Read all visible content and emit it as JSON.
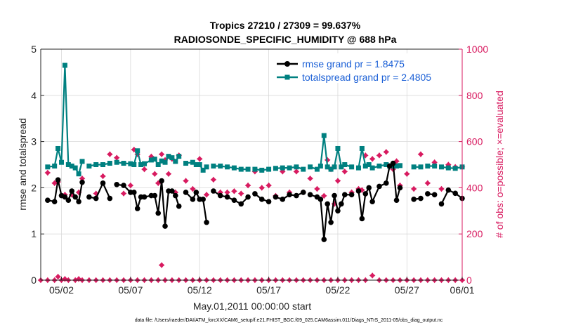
{
  "chart_data": {
    "type": "line",
    "title": "Tropics 27210 / 27309 = 99.637%",
    "subtitle": "RADIOSONDE_SPECIFIC_HUMIDITY @ 688 hPa",
    "xlabel": "May.01,2011 00:00:00 start",
    "ylabel": "rmse and totalspread",
    "ylabel_right": "# of obs: o=possible; ×=evaluated",
    "xlim": [
      0.5,
      31.0
    ],
    "ylim": [
      0,
      5
    ],
    "ylim_right": [
      0,
      1000
    ],
    "x_ticks": [
      2,
      7,
      12,
      17,
      22,
      27,
      32
    ],
    "x_tick_labels": [
      "05/02",
      "05/07",
      "05/12",
      "05/17",
      "05/22",
      "05/27",
      "06/01"
    ],
    "y_ticks": [
      0,
      1,
      2,
      3,
      4,
      5
    ],
    "y_tick_labels": [
      "0",
      "1",
      "2",
      "3",
      "4",
      "5"
    ],
    "y_ticks_right": [
      0,
      200,
      400,
      600,
      800,
      1000
    ],
    "y_tick_labels_right": [
      "0",
      "200",
      "400",
      "600",
      "800",
      "1000"
    ],
    "footer": "data file: /Users/raeder/DAI/ATM_forcXX/CAM6_setup/f.e21.FHIST_BGC.f09_025.CAM6assim.011/Diags_NTrS_2011-05/obs_diag_output.nc",
    "legend_location": "top-right",
    "colors": {
      "rmse": "#000000",
      "totalspread": "#008080",
      "obs": "#d81b60",
      "legend_text": "#1a5fd6"
    },
    "series": [
      {
        "name": "rmse",
        "legend_label": "rmse grand pr = 1.8475",
        "axis": "left",
        "segments": [
          {
            "x": [
              1.0,
              1.5,
              1.75,
              2.0,
              2.25,
              2.5,
              2.75,
              3.0,
              3.25,
              3.5
            ],
            "y": [
              1.73,
              1.7,
              2.17,
              1.83,
              1.8,
              1.73,
              1.93,
              1.8,
              1.7,
              2.12
            ]
          },
          {
            "x": [
              4.0,
              4.5,
              5.0,
              5.5
            ],
            "y": [
              1.8,
              1.77,
              2.1,
              1.77
            ]
          },
          {
            "x": [
              6.0,
              6.5,
              7.0,
              7.25,
              7.5,
              7.75,
              8.0,
              8.5,
              8.75,
              9.0,
              9.25,
              9.5,
              9.75,
              10.0,
              10.25,
              10.5
            ],
            "y": [
              2.07,
              2.05,
              1.9,
              1.9,
              1.55,
              1.8,
              1.8,
              1.83,
              1.83,
              1.45,
              2.15,
              1.17,
              1.93,
              1.93,
              1.83,
              1.6
            ]
          },
          {
            "x": [
              11.0,
              11.5,
              11.75,
              12.0,
              12.25,
              12.5
            ],
            "y": [
              1.9,
              1.75,
              1.9,
              1.75,
              1.75,
              1.25
            ]
          },
          {
            "x": [
              13.0,
              13.5,
              14.0,
              14.5,
              15.0,
              15.5
            ],
            "y": [
              1.93,
              1.83,
              1.8,
              1.73,
              1.65,
              1.8
            ]
          },
          {
            "x": [
              16.0,
              16.5,
              17.0
            ],
            "y": [
              1.87,
              1.75,
              1.7
            ]
          },
          {
            "x": [
              17.5,
              18.0,
              18.5,
              19.0,
              19.5
            ],
            "y": [
              1.8,
              1.75,
              1.85,
              1.83,
              1.9
            ]
          },
          {
            "x": [
              20.0,
              20.5,
              20.75,
              21.0,
              21.25,
              21.5,
              21.75,
              22.0,
              22.25,
              22.5,
              23.0
            ],
            "y": [
              1.85,
              1.8,
              1.75,
              0.88,
              1.65,
              1.25,
              1.83,
              1.5,
              1.65,
              1.85,
              1.85
            ]
          },
          {
            "x": [
              23.5,
              23.75,
              24.0,
              24.25,
              24.5,
              25.0,
              25.5,
              25.75,
              26.0,
              26.25,
              26.5
            ],
            "y": [
              1.93,
              1.33,
              1.87,
              2.0,
              1.7,
              2.03,
              2.1,
              2.47,
              2.53,
              1.73,
              2.0
            ]
          },
          {
            "x": [
              27.5,
              28.0
            ],
            "y": [
              1.75,
              1.77
            ]
          },
          {
            "x": [
              28.5,
              29.0
            ],
            "y": [
              1.87,
              1.85
            ]
          },
          {
            "x": [
              29.5,
              30.0,
              30.5,
              31.0
            ],
            "y": [
              1.65,
              1.95,
              1.88,
              1.77
            ]
          }
        ]
      },
      {
        "name": "totalspread",
        "legend_label": "totalspread grand pr = 2.4805",
        "axis": "left",
        "segments": [
          {
            "x": [
              1.0,
              1.5,
              1.75,
              2.0,
              2.25,
              2.5,
              2.75,
              3.0,
              3.25,
              3.5
            ],
            "y": [
              2.45,
              2.47,
              2.85,
              2.55,
              4.65,
              2.5,
              2.47,
              2.43,
              2.3,
              2.57
            ]
          },
          {
            "x": [
              4.0,
              4.5,
              5.0,
              5.5
            ],
            "y": [
              2.47,
              2.5,
              2.5,
              2.53
            ]
          },
          {
            "x": [
              6.0,
              6.5,
              7.0,
              7.25,
              7.5,
              7.75,
              8.0,
              8.5,
              8.75,
              9.0,
              9.25,
              9.5,
              9.75,
              10.0,
              10.25,
              10.5
            ],
            "y": [
              2.55,
              2.53,
              2.52,
              2.5,
              2.8,
              2.5,
              2.52,
              2.6,
              2.62,
              2.5,
              2.58,
              2.55,
              2.68,
              2.65,
              2.57,
              2.68
            ]
          },
          {
            "x": [
              11.0,
              11.5,
              11.75,
              12.0,
              12.25,
              12.5
            ],
            "y": [
              2.53,
              2.55,
              2.5,
              2.5,
              2.38,
              2.45
            ]
          },
          {
            "x": [
              13.0,
              13.5,
              14.0,
              14.5,
              15.0,
              15.5
            ],
            "y": [
              2.47,
              2.47,
              2.45,
              2.43,
              2.4,
              2.4
            ]
          },
          {
            "x": [
              16.0,
              16.5,
              17.0
            ],
            "y": [
              2.4,
              2.38,
              2.4
            ]
          },
          {
            "x": [
              17.5,
              18.0,
              18.5,
              19.0,
              19.5
            ],
            "y": [
              2.42,
              2.43,
              2.43,
              2.45,
              2.4
            ]
          },
          {
            "x": [
              20.0,
              20.5,
              20.75,
              21.0,
              21.25,
              21.5,
              21.75,
              22.0,
              22.25,
              22.5,
              23.0
            ],
            "y": [
              2.45,
              2.4,
              2.47,
              3.13,
              2.45,
              2.4,
              2.45,
              2.85,
              2.45,
              2.5,
              2.45
            ]
          },
          {
            "x": [
              23.5,
              23.75,
              24.0,
              24.25,
              24.5,
              25.0,
              25.5,
              25.75,
              26.0,
              26.25,
              26.5
            ],
            "y": [
              2.43,
              2.85,
              2.47,
              2.5,
              2.43,
              2.47,
              2.5,
              2.47,
              2.47,
              2.47,
              2.48
            ]
          },
          {
            "x": [
              27.5,
              28.0
            ],
            "y": [
              2.45,
              2.45
            ]
          },
          {
            "x": [
              28.5,
              29.0
            ],
            "y": [
              2.47,
              2.47
            ]
          },
          {
            "x": [
              29.5,
              30.0,
              30.5,
              31.0
            ],
            "y": [
              2.45,
              2.43,
              2.42,
              2.45
            ]
          }
        ]
      },
      {
        "name": "obs_possible",
        "axis": "right",
        "x": [
          1.0,
          1.5,
          1.75,
          2.25,
          2.75,
          3.25,
          3.5,
          4.5,
          5.0,
          5.5,
          6.0,
          6.5,
          7.0,
          7.25,
          7.5,
          8.0,
          8.5,
          8.75,
          9.0,
          9.25,
          9.5,
          9.75,
          10.0,
          10.25,
          10.5,
          11.0,
          11.5,
          12.0,
          12.5,
          13.0,
          13.5,
          14.0,
          14.5,
          15.0,
          15.5,
          16.0,
          16.5,
          17.0,
          17.5,
          18.0,
          18.5,
          19.0,
          19.5,
          20.0,
          20.5,
          21.0,
          21.25,
          21.5,
          21.75,
          22.0,
          22.5,
          23.0,
          23.5,
          23.75,
          24.0,
          24.5,
          25.0,
          25.5,
          26.0,
          26.25,
          26.5,
          27.0,
          27.5,
          28.0,
          28.5,
          29.0,
          29.5,
          30.0,
          30.5,
          31.0
        ],
        "y": [
          465,
          420,
          425,
          370,
          370,
          380,
          440,
          375,
          450,
          545,
          530,
          375,
          410,
          565,
          545,
          480,
          535,
          460,
          420,
          545,
          520,
          460,
          525,
          380,
          540,
          430,
          395,
          525,
          370,
          435,
          380,
          380,
          385,
          375,
          410,
          470,
          400,
          410,
          365,
          470,
          380,
          470,
          380,
          440,
          395,
          365,
          520,
          480,
          330,
          430,
          470,
          380,
          395,
          390,
          540,
          525,
          540,
          555,
          480,
          515,
          410,
          460,
          395,
          545,
          420,
          510,
          395,
          500,
          490,
          490
        ]
      },
      {
        "name": "obs_evaluated",
        "axis": "right",
        "x": [
          0.5,
          1.0,
          1.5,
          1.75,
          2.0,
          2.25,
          2.5,
          3.0,
          3.25,
          3.5,
          4.0,
          4.5,
          5.0,
          5.5,
          6.0,
          6.5,
          7.0,
          7.5,
          8.0,
          8.5,
          9.0,
          9.25,
          9.5,
          10.0,
          10.5,
          11.0,
          11.5,
          12.0,
          12.5,
          13.0,
          13.5,
          14.0,
          14.5,
          15.0,
          15.5,
          16.0,
          16.5,
          17.0,
          17.5,
          18.0,
          18.5,
          19.0,
          19.5,
          20.0,
          20.5,
          21.0,
          21.5,
          22.0,
          22.5,
          23.0,
          23.5,
          24.0,
          24.5,
          25.0,
          25.5,
          26.0,
          26.5,
          27.0,
          27.5,
          28.0,
          28.5,
          29.0,
          29.5,
          30.0,
          30.5,
          31.0
        ],
        "y": [
          0,
          0,
          0,
          15,
          0,
          5,
          0,
          0,
          5,
          0,
          0,
          0,
          0,
          0,
          0,
          0,
          0,
          0,
          0,
          0,
          0,
          65,
          0,
          0,
          0,
          0,
          0,
          0,
          0,
          0,
          0,
          0,
          0,
          0,
          0,
          0,
          0,
          0,
          0,
          0,
          0,
          0,
          0,
          0,
          0,
          0,
          0,
          0,
          0,
          0,
          0,
          0,
          20,
          0,
          0,
          0,
          0,
          0,
          0,
          0,
          0,
          0,
          0,
          0,
          0,
          0
        ]
      }
    ]
  }
}
